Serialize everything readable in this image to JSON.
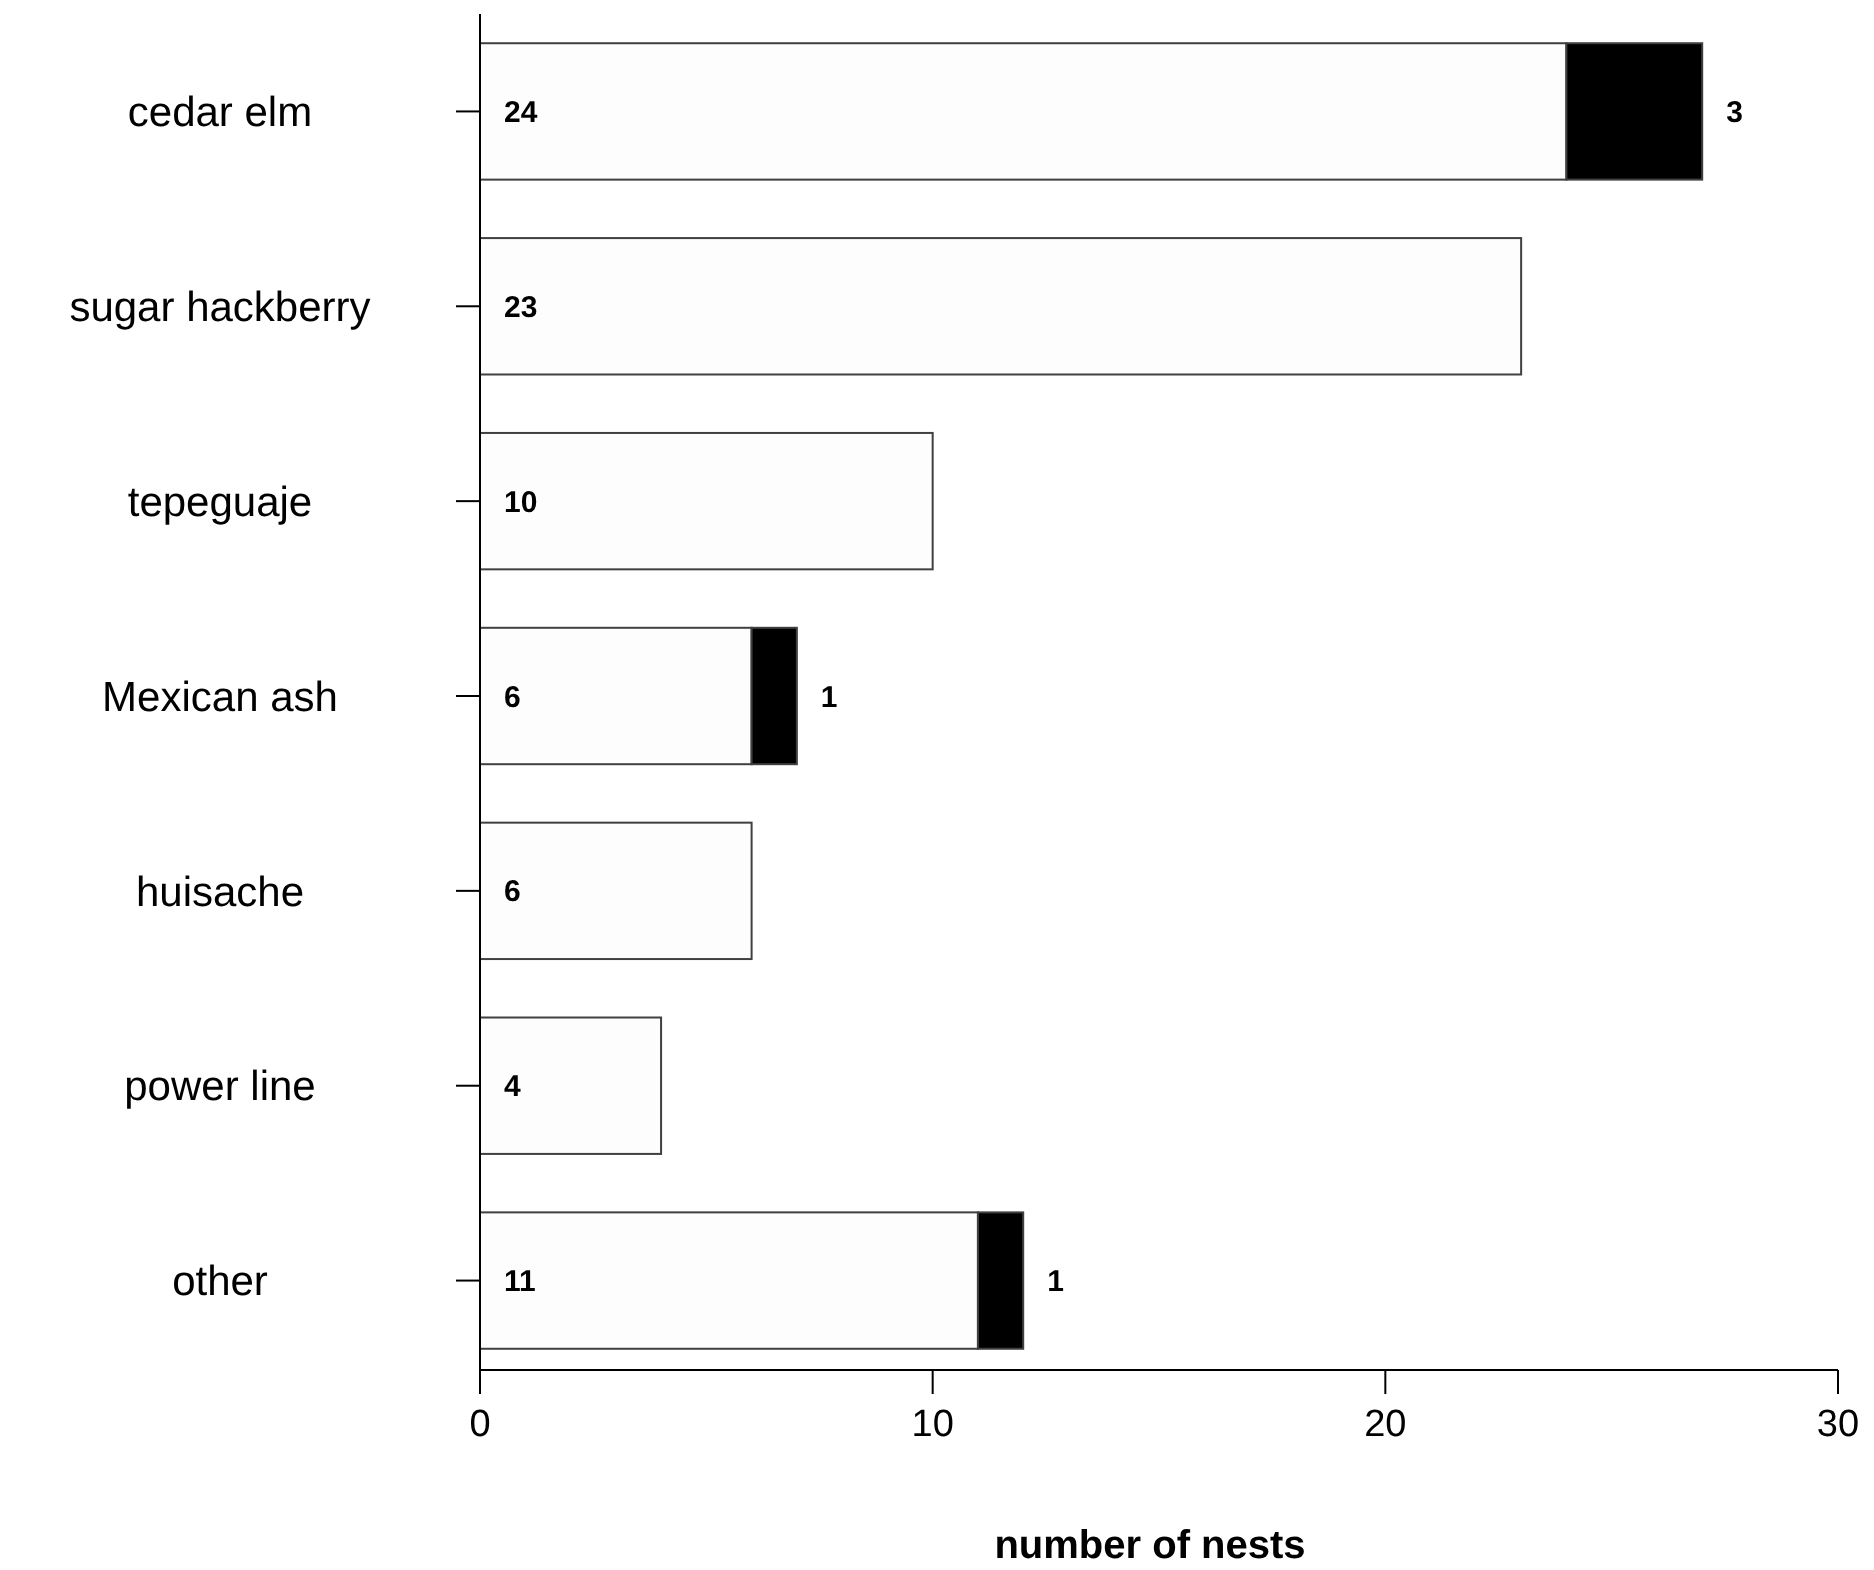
{
  "chart_data": {
    "type": "bar",
    "orientation": "horizontal",
    "stacked": true,
    "data_labels": true,
    "xlabel": "number of nests",
    "categories": [
      "cedar elm",
      "sugar hackberry",
      "tepeguaje",
      "Mexican ash",
      "huisache",
      "power line",
      "other"
    ],
    "series": [
      {
        "color": "#fdfdfd",
        "values": [
          24,
          23,
          10,
          6,
          6,
          4,
          11
        ]
      },
      {
        "color": "#000000",
        "values": [
          3,
          null,
          null,
          1,
          null,
          null,
          1
        ]
      }
    ],
    "xlim": [
      0,
      30
    ],
    "xticks": [
      0,
      10,
      20,
      30
    ]
  }
}
